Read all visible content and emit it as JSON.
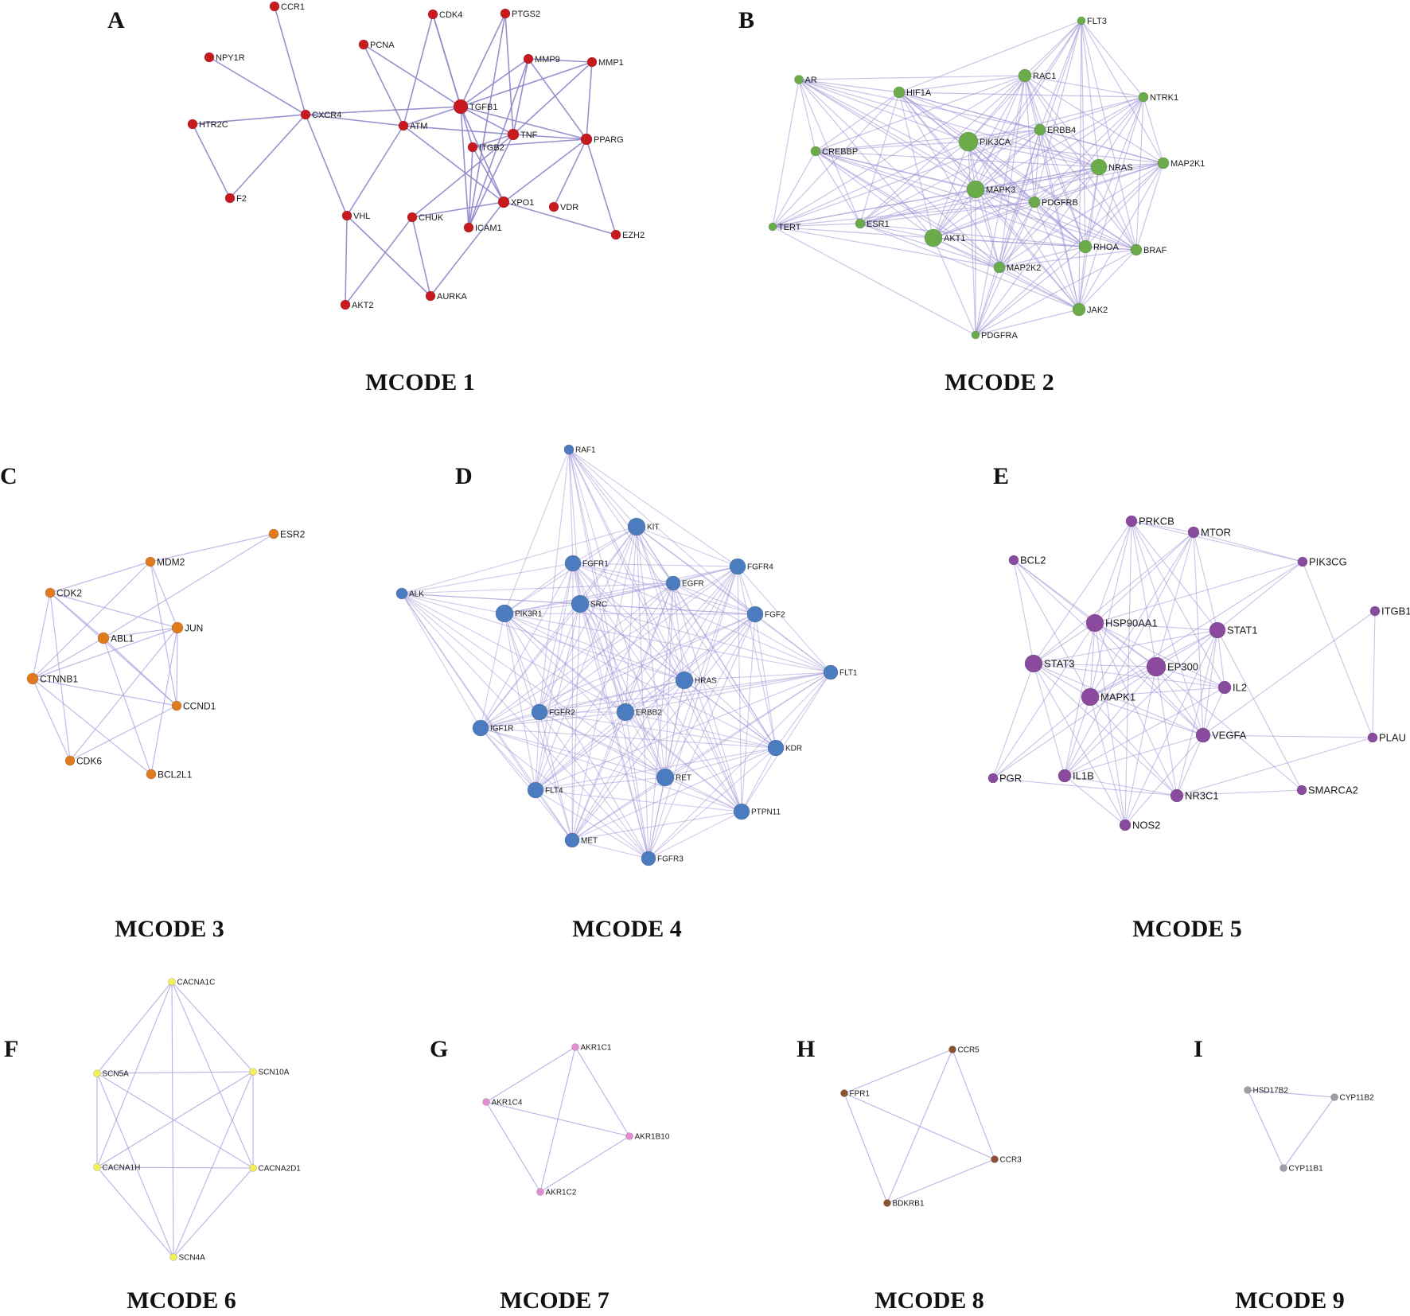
{
  "figure": {
    "panels": [
      {
        "letter": "A",
        "caption": "MCODE 1",
        "color": "#c8191f",
        "edge_color": "#8e84c9",
        "nodes": [
          "CCR1",
          "CDK4",
          "PTGS2",
          "NPY1R",
          "PCNA",
          "MMP9",
          "MMP1",
          "HTR2C",
          "CXCR4",
          "ATM",
          "TGFB1",
          "TNF",
          "ITGB2",
          "PPARG",
          "F2",
          "VHL",
          "CHUK",
          "XPO1",
          "VDR",
          "ICAM1",
          "EZH2",
          "AKT2",
          "AURKA"
        ]
      },
      {
        "letter": "B",
        "caption": "MCODE 2",
        "color": "#6aab4a",
        "edge_color": "#9c92d4",
        "nodes": [
          "FLT3",
          "AR",
          "HIF1A",
          "RAC1",
          "NTRK1",
          "ERBB4",
          "CREBBP",
          "PIK3CA",
          "NRAS",
          "MAP2K1",
          "MAPK3",
          "PDGFRB",
          "TERT",
          "ESR1",
          "AKT1",
          "RHOA",
          "BRAF",
          "MAP2K2",
          "JAK2",
          "PDGFRA"
        ]
      },
      {
        "letter": "C",
        "caption": "MCODE 3",
        "color": "#e07a1f",
        "edge_color": "#a59ddb",
        "nodes": [
          "ESR2",
          "MDM2",
          "CDK2",
          "JUN",
          "ABL1",
          "CTNNB1",
          "CCND1",
          "CDK6",
          "BCL2L1"
        ]
      },
      {
        "letter": "D",
        "caption": "MCODE 4",
        "color": "#4a7cbf",
        "edge_color": "#9f94d6",
        "nodes": [
          "RAF1",
          "KIT",
          "FGFR1",
          "FGFR4",
          "EGFR",
          "ALK",
          "PIK3R1",
          "SRC",
          "FGF2",
          "FLT1",
          "HRAS",
          "FGFR2",
          "ERBB2",
          "IGF1R",
          "KDR",
          "RET",
          "FLT4",
          "PTPN11",
          "MET",
          "FGFR3"
        ]
      },
      {
        "letter": "E",
        "caption": "MCODE 5",
        "color": "#8a4a9e",
        "edge_color": "#9c92d4",
        "nodes": [
          "PRKCB",
          "MTOR",
          "BCL2",
          "PIK3CG",
          "ITGB1",
          "HSP90AA1",
          "STAT1",
          "STAT3",
          "EP300",
          "IL2",
          "MAPK1",
          "VEGFA",
          "PLAU",
          "PGR",
          "IL1B",
          "NR3C1",
          "SMARCA2",
          "NOS2"
        ]
      },
      {
        "letter": "F",
        "caption": "MCODE 6",
        "color": "#f3f05a",
        "edge_color": "#a79fdc",
        "nodes": [
          "CACNA1C",
          "SCN5A",
          "SCN10A",
          "CACNA1H",
          "CACNA2D1",
          "SCN4A"
        ]
      },
      {
        "letter": "G",
        "caption": "MCODE 7",
        "color": "#e38ccf",
        "edge_color": "#a79fdc",
        "nodes": [
          "AKR1C1",
          "AKR1C4",
          "AKR1B10",
          "AKR1C2"
        ]
      },
      {
        "letter": "H",
        "caption": "MCODE 8",
        "color": "#8a5330",
        "edge_color": "#a79fdc",
        "nodes": [
          "CCR5",
          "FPR1",
          "CCR3",
          "BDKRB1"
        ]
      },
      {
        "letter": "I",
        "caption": "MCODE 9",
        "color": "#9aa0a6",
        "edge_color": "#a79fdc",
        "nodes": [
          "HSD17B2",
          "CYP11B2",
          "CYP11B1"
        ]
      }
    ]
  }
}
